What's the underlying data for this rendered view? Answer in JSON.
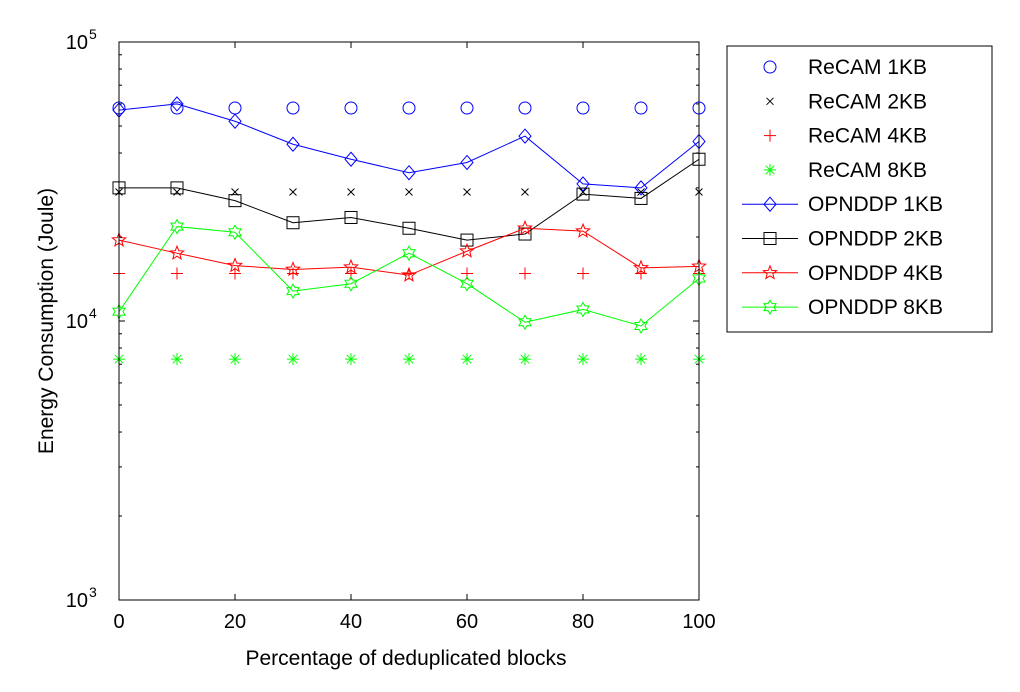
{
  "chart_data": {
    "type": "line",
    "title": "",
    "xlabel": "Percentage of deduplicated blocks",
    "ylabel": "Energy Consumption (Joule)",
    "x": [
      0,
      10,
      20,
      30,
      40,
      50,
      60,
      70,
      80,
      90,
      100
    ],
    "xlim": [
      0,
      100
    ],
    "xticks": [
      0,
      20,
      40,
      60,
      80,
      100
    ],
    "yscale": "log",
    "ylim": [
      1000,
      100000
    ],
    "yticks": [
      {
        "value": 1000,
        "base": "10",
        "exp": "3"
      },
      {
        "value": 10000,
        "base": "10",
        "exp": "4"
      },
      {
        "value": 100000,
        "base": "10",
        "exp": "5"
      }
    ],
    "grid": false,
    "legend_position": "outside-right",
    "series": [
      {
        "name": "ReCAM 1KB",
        "marker": "circle",
        "line": false,
        "color": "#0000ff",
        "values": [
          58000,
          58000,
          58000,
          58000,
          58000,
          58000,
          58000,
          58000,
          58000,
          58000,
          58000
        ]
      },
      {
        "name": "ReCAM 2KB",
        "marker": "x",
        "line": false,
        "color": "#000000",
        "values": [
          29000,
          29000,
          29000,
          29000,
          29000,
          29000,
          29000,
          29000,
          29000,
          29000,
          29000
        ]
      },
      {
        "name": "ReCAM 4KB",
        "marker": "plus",
        "line": false,
        "color": "#ff0000",
        "values": [
          14800,
          14800,
          14800,
          14800,
          14800,
          14800,
          14800,
          14800,
          14800,
          14800,
          14800
        ]
      },
      {
        "name": "ReCAM 8KB",
        "marker": "asterisk",
        "line": false,
        "color": "#00ff00",
        "values": [
          7300,
          7300,
          7300,
          7300,
          7300,
          7300,
          7300,
          7300,
          7300,
          7300,
          7300
        ]
      },
      {
        "name": "OPNDDP 1KB",
        "marker": "diamond",
        "line": true,
        "color": "#0000ff",
        "values": [
          57000,
          60000,
          52000,
          43000,
          38000,
          34000,
          37000,
          46000,
          31000,
          30000,
          44000
        ]
      },
      {
        "name": "OPNDDP 2KB",
        "marker": "square",
        "line": true,
        "color": "#000000",
        "values": [
          30000,
          30000,
          27000,
          22500,
          23500,
          21500,
          19500,
          20500,
          28500,
          27500,
          38000
        ]
      },
      {
        "name": "OPNDDP 4KB",
        "marker": "pentagram",
        "line": true,
        "color": "#ff0000",
        "values": [
          19500,
          17500,
          15800,
          15300,
          15600,
          14600,
          17800,
          21500,
          21000,
          15500,
          15700
        ]
      },
      {
        "name": "OPNDDP 8KB",
        "marker": "hexagram",
        "line": true,
        "color": "#00ff00",
        "values": [
          10800,
          21800,
          20800,
          12800,
          13600,
          17500,
          13600,
          9900,
          11000,
          9600,
          14200
        ]
      }
    ]
  }
}
